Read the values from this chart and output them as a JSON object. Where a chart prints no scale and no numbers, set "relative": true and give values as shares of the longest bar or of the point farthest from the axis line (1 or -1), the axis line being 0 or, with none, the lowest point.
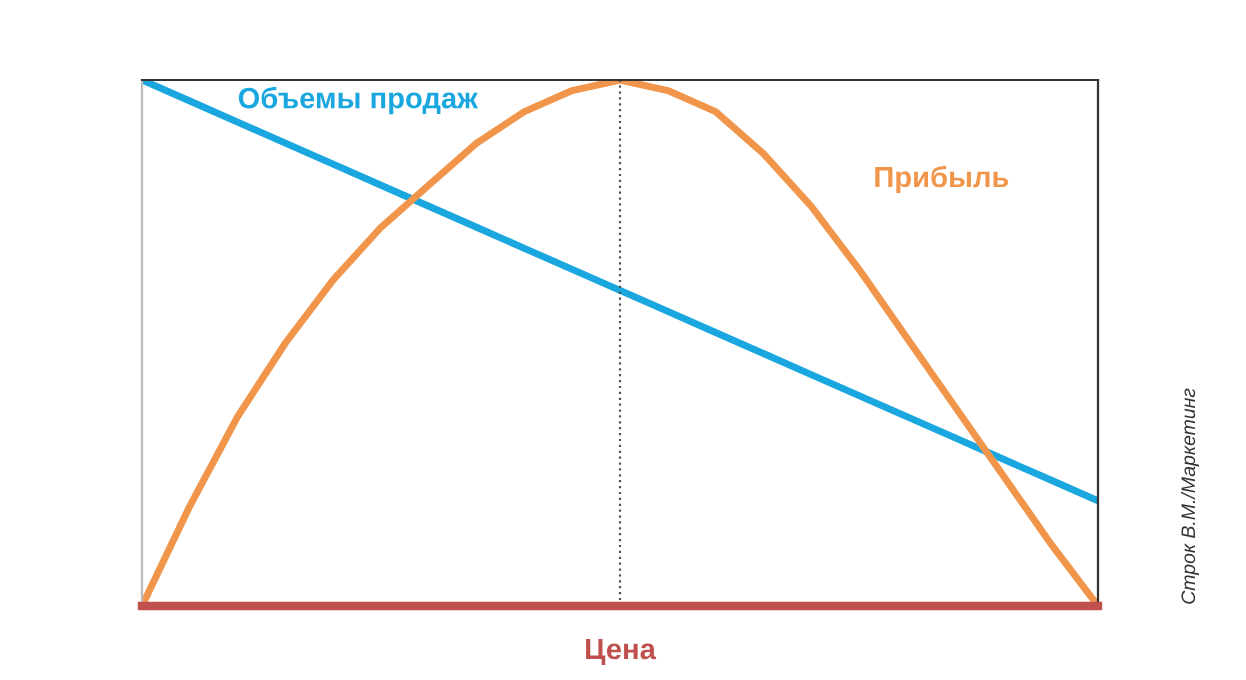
{
  "chart_data": {
    "type": "line",
    "relative": true,
    "xlabel": "Цена",
    "categories": [
      null,
      null,
      null,
      null,
      null,
      null,
      null,
      null,
      null,
      null,
      null,
      null,
      null,
      null,
      null,
      null,
      null,
      null,
      null,
      null,
      null
    ],
    "series": [
      {
        "name": "Объемы продаж",
        "color": "#1aa7e0",
        "values": [
          1,
          0.96,
          0.92,
          0.88,
          0.84,
          0.8,
          0.76,
          0.72,
          0.68,
          0.64,
          0.6,
          0.56,
          0.52,
          0.48,
          0.44,
          0.4,
          0.36,
          0.32,
          0.28,
          0.24,
          0.2
        ]
      },
      {
        "name": "Прибыль",
        "color": "#f0954a",
        "values": [
          0,
          0.19,
          0.36,
          0.5,
          0.62,
          0.72,
          0.8,
          0.88,
          0.94,
          0.98,
          1,
          0.98,
          0.94,
          0.86,
          0.76,
          0.64,
          0.51,
          0.38,
          0.25,
          0.12,
          0
        ]
      }
    ],
    "annotations": [
      "Строк В.М./Маркетинг"
    ],
    "legend": false,
    "grid": false,
    "marker": "none",
    "line_style": "solid"
  }
}
